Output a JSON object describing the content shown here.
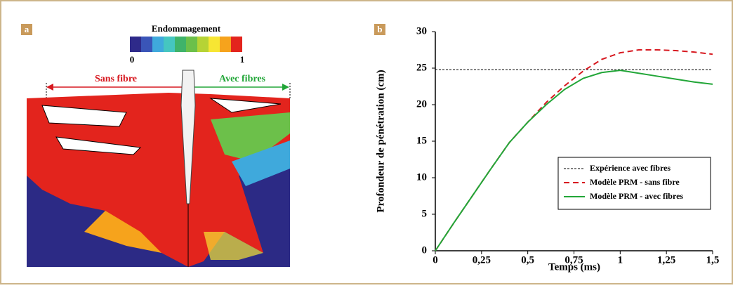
{
  "panel_a": {
    "label": "a",
    "colorbar": {
      "title": "Endommagement",
      "min": 0,
      "max": 1
    },
    "left_label": "Sans fibre",
    "right_label": "Avec fibres"
  },
  "chart_data": {
    "type": "line",
    "panel_label": "b",
    "x_label": "Temps (ms)",
    "y_label": "Profondeur de pénétration (cm)",
    "x": [
      0,
      0.1,
      0.2,
      0.3,
      0.4,
      0.5,
      0.6,
      0.7,
      0.8,
      0.9,
      1.0,
      1.1,
      1.2,
      1.3,
      1.4,
      1.5
    ],
    "series": [
      {
        "name": "Expérience avec fibres",
        "color": "#000000",
        "linestyle": "dotted",
        "values": [
          24.8,
          24.8,
          24.8,
          24.8,
          24.8,
          24.8,
          24.8,
          24.8,
          24.8,
          24.8,
          24.8,
          24.8,
          24.8,
          24.8,
          24.8,
          24.8
        ]
      },
      {
        "name": "Modèle PRM - sans fibre",
        "color": "#d71920",
        "linestyle": "dashed",
        "values": [
          0,
          3.8,
          7.5,
          11.2,
          14.8,
          17.6,
          20.3,
          22.6,
          24.6,
          26.2,
          27.1,
          27.5,
          27.5,
          27.4,
          27.2,
          26.9
        ]
      },
      {
        "name": "Modèle PRM - avec fibres",
        "color": "#22a638",
        "linestyle": "solid",
        "values": [
          0,
          3.8,
          7.5,
          11.2,
          14.8,
          17.6,
          20.0,
          22.1,
          23.6,
          24.4,
          24.7,
          24.3,
          23.9,
          23.5,
          23.1,
          22.8
        ]
      }
    ],
    "xlim": [
      0,
      1.5
    ],
    "xticks": [
      0,
      {
        "value": 0.25,
        "label": "0,25"
      },
      {
        "value": 0.5,
        "label": "0,5"
      },
      {
        "value": 0.75,
        "label": "0,75"
      },
      1,
      {
        "value": 1.25,
        "label": "1,25"
      },
      {
        "value": 1.5,
        "label": "1,5"
      }
    ],
    "ylim": [
      0,
      30
    ],
    "yticks": [
      0,
      5,
      10,
      15,
      20,
      25,
      30
    ]
  }
}
